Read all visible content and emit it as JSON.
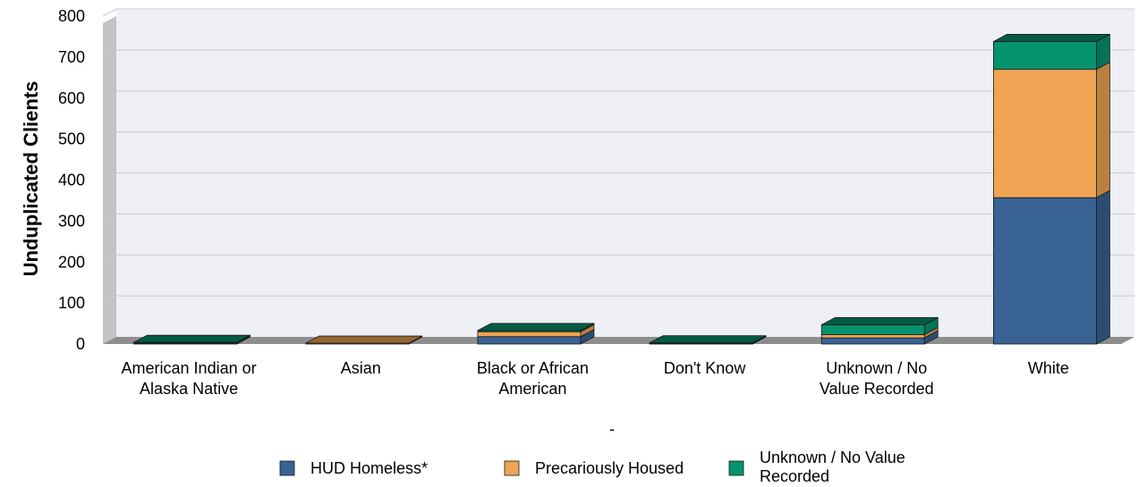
{
  "chart_data": {
    "type": "bar",
    "stacked": true,
    "three_d": true,
    "categories": [
      [
        "American Indian or",
        "Alaska Native"
      ],
      [
        "Asian"
      ],
      [
        "Black or African",
        "American"
      ],
      [
        "Don't Know"
      ],
      [
        "Unknown / No",
        "Value Recorded"
      ],
      [
        "White"
      ]
    ],
    "series": [
      {
        "name": "HUD Homeless*",
        "color": "#386394",
        "values": [
          2,
          0,
          18,
          1,
          15,
          357
        ]
      },
      {
        "name": "Precariously Housed",
        "color": "#eea452",
        "values": [
          1,
          2,
          12,
          1,
          8,
          313
        ]
      },
      {
        "name": "Unknown / No Value Recorded",
        "color": "#05936e",
        "values": [
          1,
          0,
          3,
          1,
          24,
          68
        ]
      }
    ],
    "ylabel": "Unduplicated Clients",
    "xlabel": "-",
    "ylim": [
      0,
      800
    ],
    "yticks": [
      0,
      100,
      200,
      300,
      400,
      500,
      600,
      700,
      800
    ],
    "grid": true,
    "legend_position": "bottom"
  }
}
